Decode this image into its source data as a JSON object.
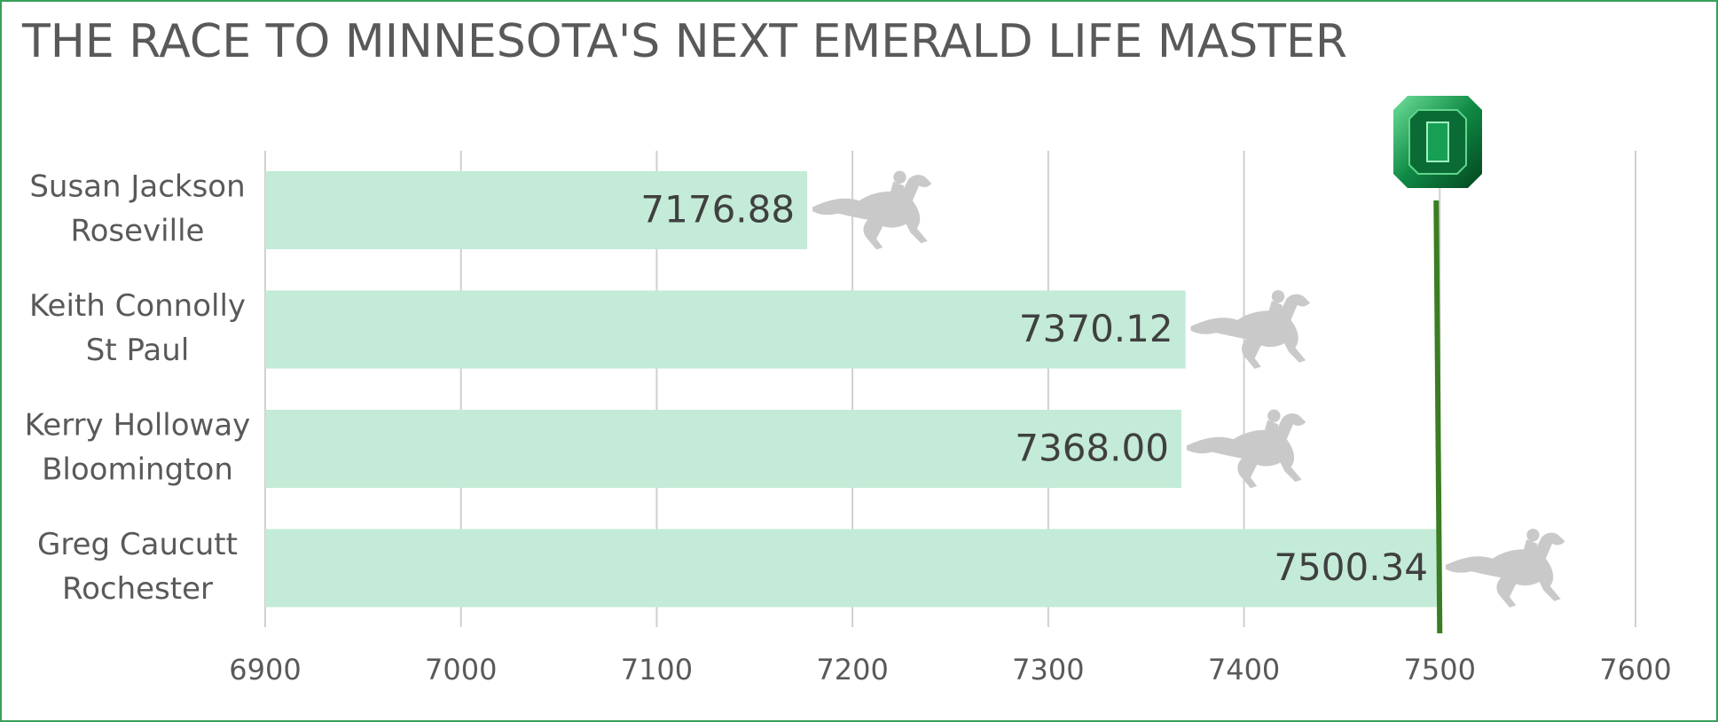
{
  "chart_data": {
    "type": "bar",
    "orientation": "horizontal",
    "title": "THE RACE TO MINNESOTA'S NEXT EMERALD LIFE MASTER",
    "categories": [
      [
        "Susan Jackson",
        "Roseville"
      ],
      [
        "Keith Connolly",
        "St Paul"
      ],
      [
        "Kerry Holloway",
        "Bloomington"
      ],
      [
        "Greg Caucutt",
        "Rochester"
      ]
    ],
    "values": [
      7176.88,
      7370.12,
      7368,
      7500.34
    ],
    "value_labels": [
      "7176.88",
      "7370.12",
      "7368.00",
      "7500.34"
    ],
    "color": "#c3ebd7",
    "target": 7500,
    "target_color": "#3a7d22",
    "xlim": [
      6900,
      7600
    ],
    "xticks": [
      6900,
      7000,
      7100,
      7200,
      7300,
      7400,
      7500,
      7600
    ],
    "grid": true
  }
}
